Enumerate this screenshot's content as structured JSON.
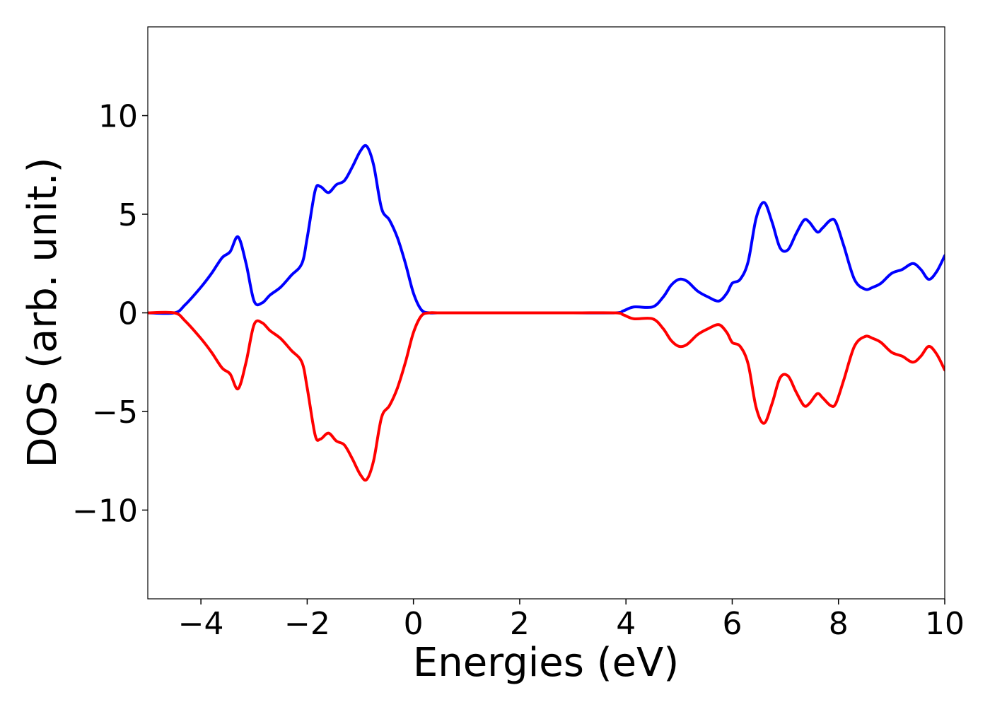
{
  "chart_data": {
    "type": "line",
    "xlabel": "Energies (eV)",
    "ylabel": "DOS (arb. unit.)",
    "xlim": [
      -5,
      10
    ],
    "ylim": [
      -14.5,
      14.5
    ],
    "xticks": [
      -4,
      -2,
      0,
      2,
      4,
      6,
      8,
      10
    ],
    "xtick_labels": [
      "−4",
      "−2",
      "0",
      "2",
      "4",
      "6",
      "8",
      "10"
    ],
    "yticks": [
      10,
      5,
      0,
      -5,
      -10
    ],
    "ytick_labels": [
      "10",
      "5",
      "0",
      "−5",
      "−10"
    ],
    "grid": false,
    "series": [
      {
        "color": "#0000ff",
        "x": [
          -5.0,
          -4.5,
          -4.3,
          -4.0,
          -3.8,
          -3.6,
          -3.45,
          -3.3,
          -3.15,
          -3.0,
          -2.85,
          -2.7,
          -2.5,
          -2.3,
          -2.1,
          -2.0,
          -1.85,
          -1.75,
          -1.6,
          -1.45,
          -1.3,
          -1.15,
          -1.0,
          -0.88,
          -0.75,
          -0.6,
          -0.45,
          -0.3,
          -0.15,
          0.0,
          0.15,
          0.3,
          0.45,
          1.0,
          2.0,
          3.0,
          3.8,
          3.95,
          4.15,
          4.5,
          4.7,
          4.85,
          5.0,
          5.15,
          5.35,
          5.55,
          5.75,
          5.9,
          6.0,
          6.15,
          6.3,
          6.45,
          6.6,
          6.75,
          6.9,
          7.05,
          7.2,
          7.35,
          7.45,
          7.6,
          7.7,
          7.85,
          7.95,
          8.1,
          8.3,
          8.5,
          8.65,
          8.8,
          9.0,
          9.2,
          9.4,
          9.55,
          9.7,
          9.85,
          10.0
        ],
        "y": [
          0.0,
          0.0,
          0.4,
          1.3,
          2.0,
          2.8,
          3.1,
          3.85,
          2.5,
          0.6,
          0.5,
          0.9,
          1.3,
          1.9,
          2.5,
          3.8,
          6.2,
          6.4,
          6.1,
          6.5,
          6.7,
          7.4,
          8.2,
          8.45,
          7.5,
          5.3,
          4.7,
          3.8,
          2.5,
          1.0,
          0.15,
          0.0,
          0.0,
          0.0,
          0.0,
          0.0,
          0.0,
          0.1,
          0.3,
          0.3,
          0.8,
          1.4,
          1.7,
          1.6,
          1.1,
          0.8,
          0.6,
          1.0,
          1.5,
          1.7,
          2.6,
          4.8,
          5.6,
          4.6,
          3.3,
          3.2,
          4.0,
          4.7,
          4.6,
          4.1,
          4.3,
          4.7,
          4.6,
          3.4,
          1.7,
          1.2,
          1.3,
          1.5,
          2.0,
          2.2,
          2.5,
          2.2,
          1.7,
          2.1,
          2.9
        ]
      },
      {
        "color": "#ff0000",
        "x": [
          -5.0,
          -4.5,
          -4.3,
          -4.0,
          -3.8,
          -3.6,
          -3.45,
          -3.3,
          -3.15,
          -3.0,
          -2.85,
          -2.7,
          -2.5,
          -2.3,
          -2.1,
          -2.0,
          -1.85,
          -1.75,
          -1.6,
          -1.45,
          -1.3,
          -1.15,
          -1.0,
          -0.88,
          -0.75,
          -0.6,
          -0.45,
          -0.3,
          -0.15,
          0.0,
          0.15,
          0.3,
          0.45,
          1.0,
          2.0,
          3.0,
          3.8,
          3.95,
          4.15,
          4.5,
          4.7,
          4.85,
          5.0,
          5.15,
          5.35,
          5.55,
          5.75,
          5.9,
          6.0,
          6.15,
          6.3,
          6.45,
          6.6,
          6.75,
          6.9,
          7.05,
          7.2,
          7.35,
          7.45,
          7.6,
          7.7,
          7.85,
          7.95,
          8.1,
          8.3,
          8.5,
          8.65,
          8.8,
          9.0,
          9.2,
          9.4,
          9.55,
          9.7,
          9.85,
          10.0
        ],
        "y": [
          0.0,
          0.0,
          -0.4,
          -1.3,
          -2.0,
          -2.8,
          -3.1,
          -3.85,
          -2.5,
          -0.6,
          -0.5,
          -0.9,
          -1.3,
          -1.9,
          -2.5,
          -3.8,
          -6.2,
          -6.4,
          -6.1,
          -6.5,
          -6.7,
          -7.4,
          -8.2,
          -8.45,
          -7.5,
          -5.3,
          -4.7,
          -3.8,
          -2.5,
          -1.0,
          -0.15,
          0.0,
          0.0,
          0.0,
          0.0,
          0.0,
          0.0,
          -0.1,
          -0.3,
          -0.3,
          -0.8,
          -1.4,
          -1.7,
          -1.6,
          -1.1,
          -0.8,
          -0.6,
          -1.0,
          -1.5,
          -1.7,
          -2.6,
          -4.8,
          -5.6,
          -4.6,
          -3.3,
          -3.2,
          -4.0,
          -4.7,
          -4.6,
          -4.1,
          -4.3,
          -4.7,
          -4.6,
          -3.4,
          -1.7,
          -1.2,
          -1.3,
          -1.5,
          -2.0,
          -2.2,
          -2.5,
          -2.2,
          -1.7,
          -2.1,
          -2.9
        ]
      }
    ]
  }
}
